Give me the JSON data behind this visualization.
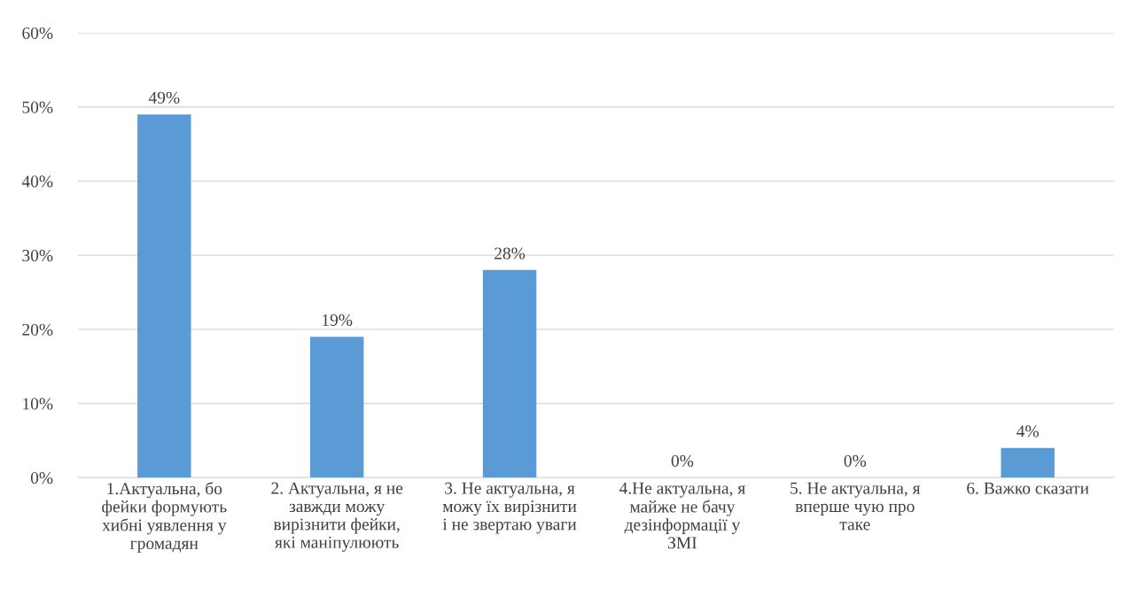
{
  "chart_data": {
    "type": "bar",
    "categories": [
      "1.Актуальна, бо\nфейки формують\nхибні уявлення у\nгромадян",
      "2. Актуальна, я не\nзавжди можу\nвирізнити фейки,\nякі маніпулюють",
      "3. Не актуальна, я\nможу їх вирізнити\nі не звертаю уваги",
      "4.Не актуальна, я\nмайже не бачу\nдезінформації у\nЗМІ",
      "5. Не актуальна, я\nвперше чую про\nтаке",
      "6. Важко сказати"
    ],
    "values": [
      49,
      19,
      28,
      0,
      0,
      4
    ],
    "value_labels": [
      "49%",
      "19%",
      "28%",
      "0%",
      "0%",
      "4%"
    ],
    "color": "#5b9bd5",
    "ylim": [
      0,
      60
    ],
    "yticks": [
      {
        "value": 0,
        "label": "0%"
      },
      {
        "value": 10,
        "label": "10%"
      },
      {
        "value": 20,
        "label": "20%"
      },
      {
        "value": 30,
        "label": "30%"
      },
      {
        "value": 40,
        "label": "40%"
      },
      {
        "value": 50,
        "label": "50%"
      },
      {
        "value": 60,
        "label": "60%"
      }
    ],
    "grid": "y"
  }
}
